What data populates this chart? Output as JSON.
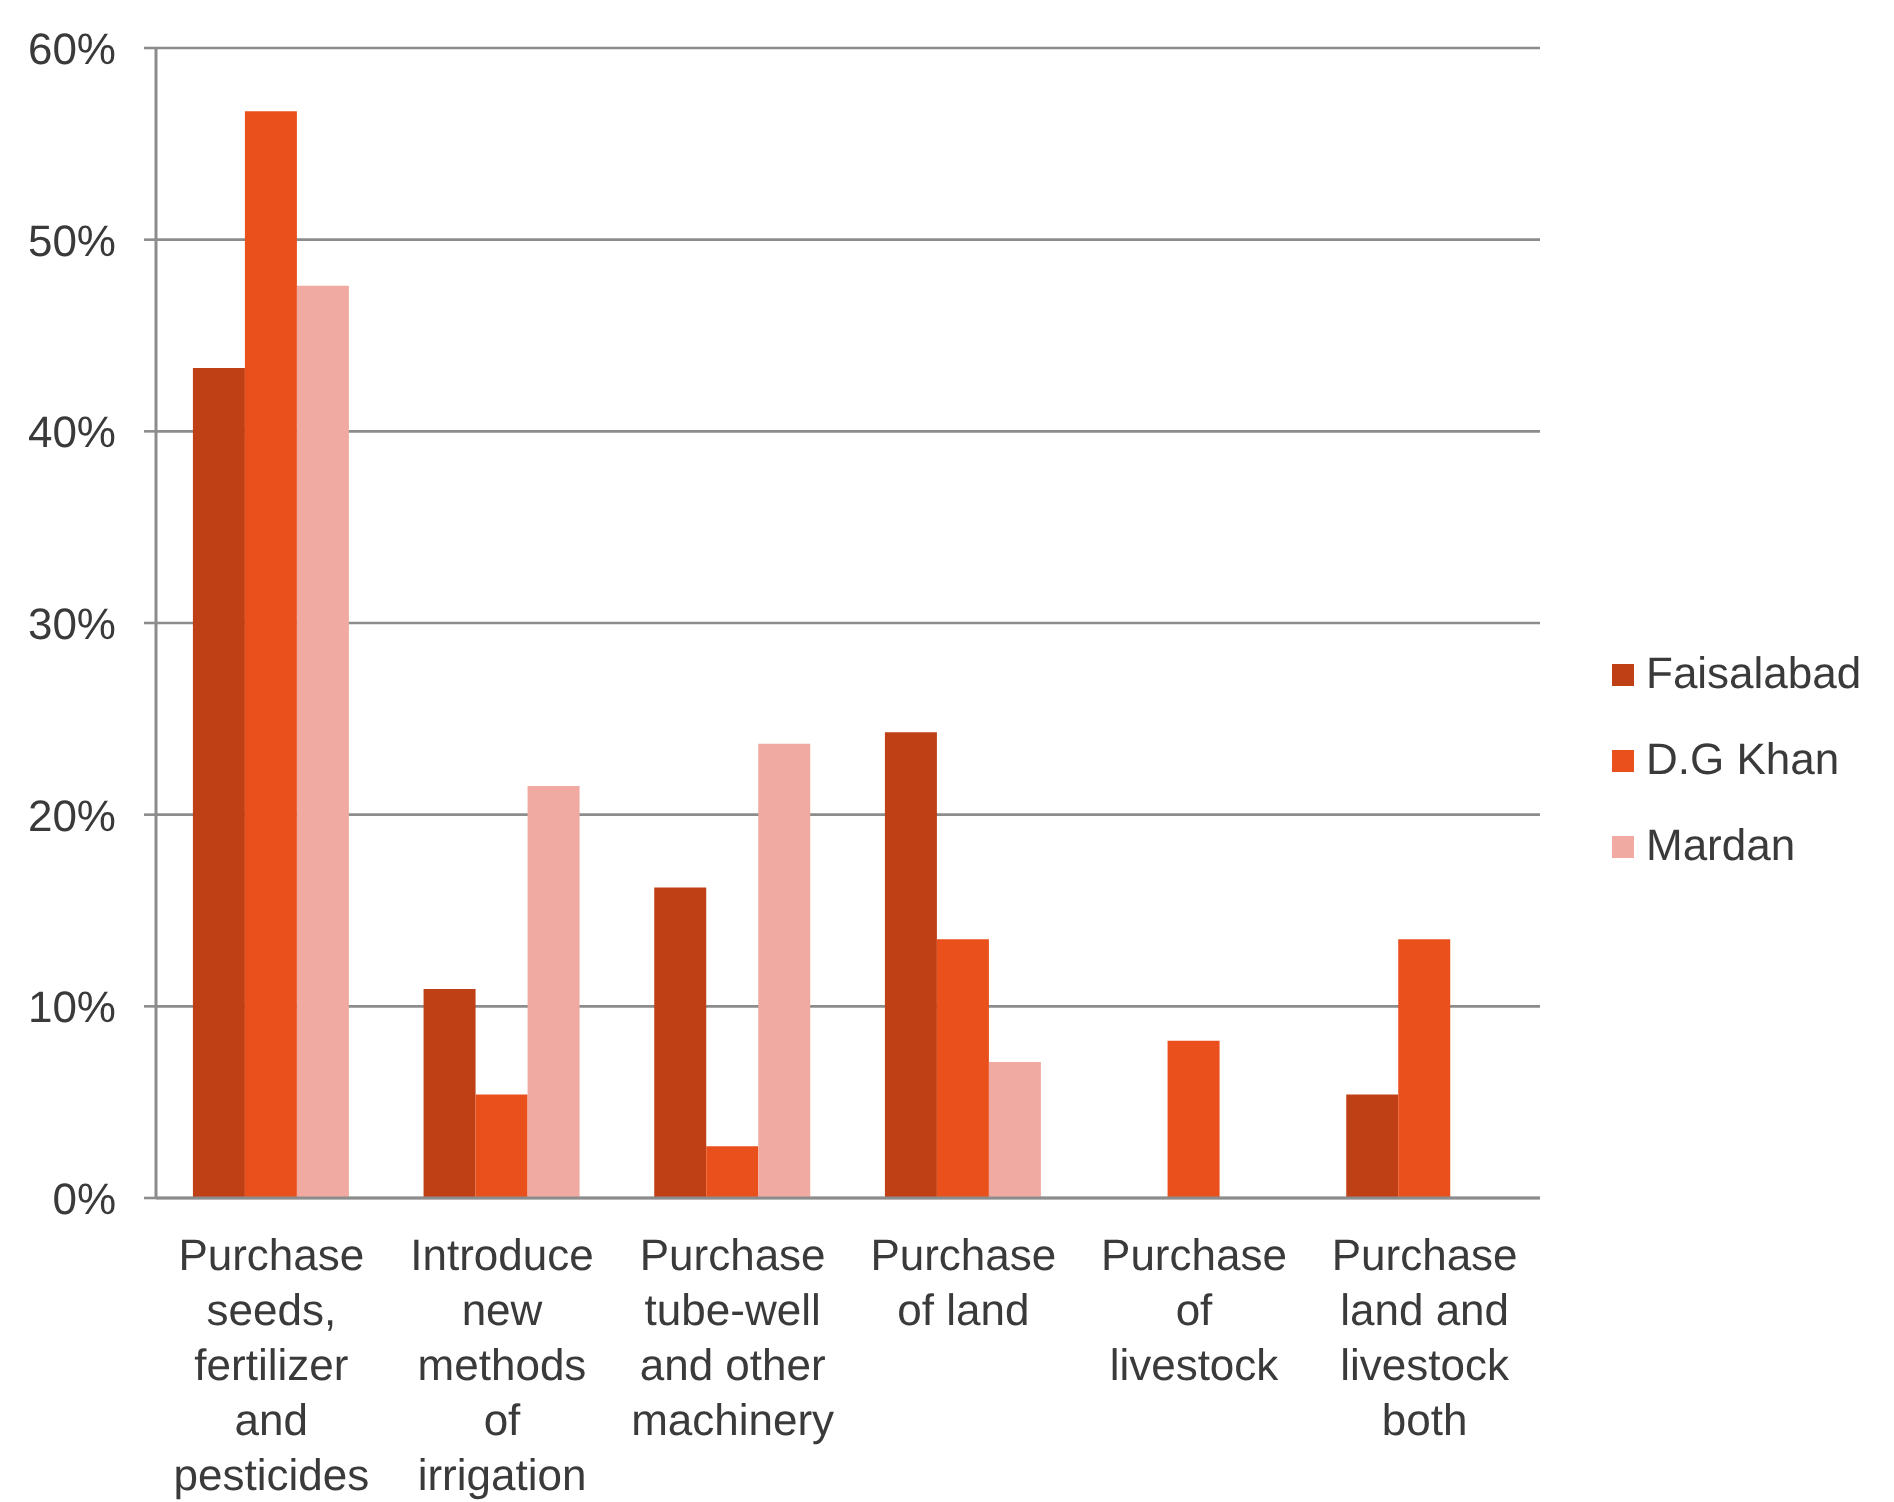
{
  "chart_data": {
    "type": "bar",
    "categories": [
      "Purchase seeds, fertilizer and pesticides",
      "Introduce new methods of irrigation",
      "Purchase tube-well and other machinery",
      "Purchase of land",
      "Purchase of livestock",
      "Purchase land and livestock both"
    ],
    "series": [
      {
        "name": "Faisalabad",
        "color": "#c04016",
        "values": [
          43.3,
          10.9,
          16.2,
          24.3,
          0,
          5.4
        ]
      },
      {
        "name": "D.G Khan",
        "color": "#e9501c",
        "values": [
          56.7,
          5.4,
          2.7,
          13.5,
          8.2,
          13.5
        ]
      },
      {
        "name": "Mardan",
        "color": "#f0aaa2",
        "values": [
          47.6,
          21.5,
          23.7,
          7.1,
          0,
          0
        ]
      }
    ],
    "ylim": [
      0,
      60
    ],
    "yticks": [
      {
        "value": 0,
        "label": "0%"
      },
      {
        "value": 10,
        "label": "10%"
      },
      {
        "value": 20,
        "label": "20%"
      },
      {
        "value": 30,
        "label": "30%"
      },
      {
        "value": 40,
        "label": "40%"
      },
      {
        "value": 50,
        "label": "50%"
      },
      {
        "value": 60,
        "label": "60%"
      }
    ],
    "grid": "y",
    "legend": "right"
  }
}
